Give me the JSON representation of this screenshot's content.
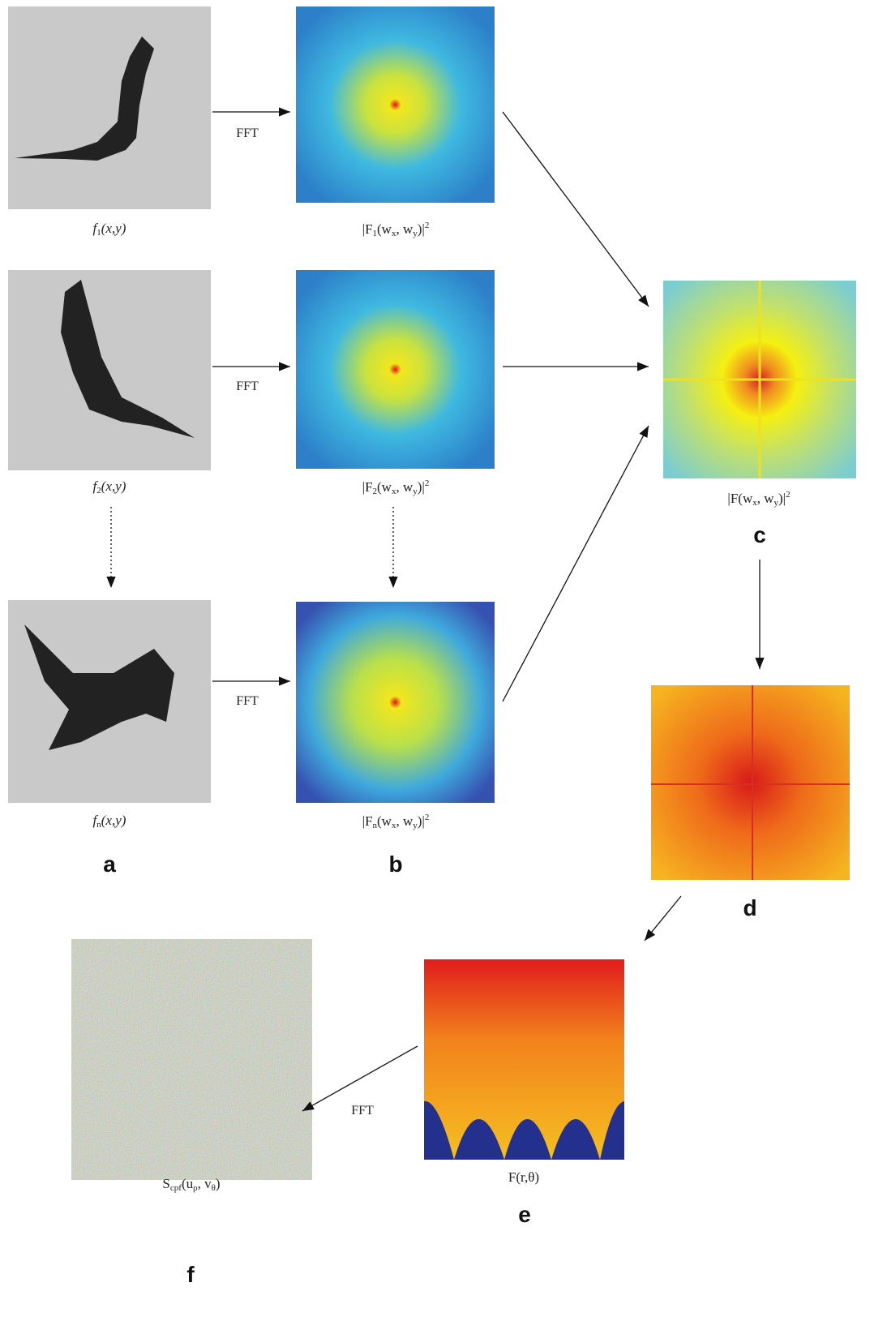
{
  "labels": {
    "f1": [
      "f",
      "1",
      "(x,y)"
    ],
    "f2": [
      "f",
      "2",
      "(x,y)"
    ],
    "fn": [
      "f",
      "n",
      "(x,y)"
    ],
    "F1": [
      "|F",
      "1",
      "(w",
      "x",
      ", w",
      "y",
      ")|",
      "2"
    ],
    "F2": [
      "|F",
      "2",
      "(w",
      "x",
      ", w",
      "y",
      ")|",
      "2"
    ],
    "Fn": [
      "|F",
      "n",
      "(w",
      "x",
      ", w",
      "y",
      ")|",
      "2"
    ],
    "F": [
      "|F(w",
      "x",
      ", w",
      "y",
      ")|",
      "2"
    ],
    "Fr": [
      "F(r,θ)"
    ],
    "S": [
      "S",
      "cpf",
      "(u",
      "ρ",
      ", v",
      "θ",
      ")"
    ]
  },
  "arrow_labels": [
    "FFT",
    "FFT",
    "FFT",
    "FFT"
  ],
  "letters": [
    "a",
    "b",
    "c",
    "d",
    "e",
    "f"
  ]
}
